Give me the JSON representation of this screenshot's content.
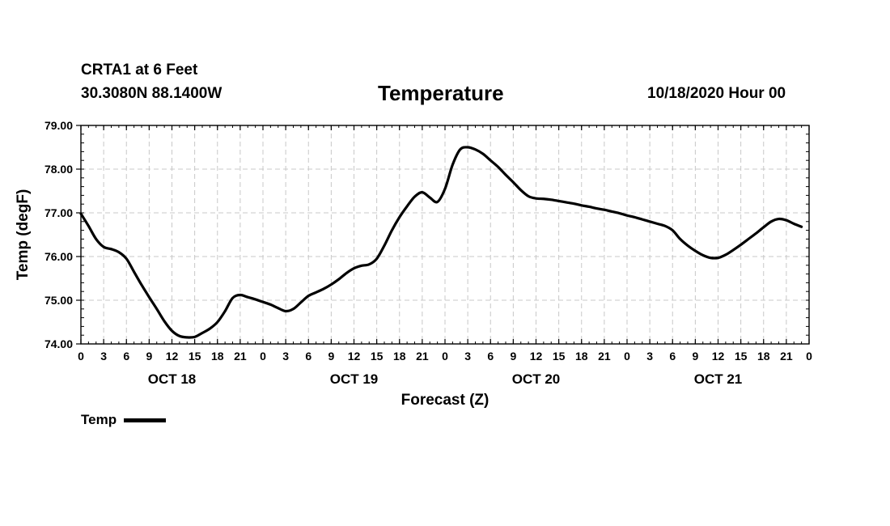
{
  "header": {
    "station": "CRTA1 at 6 Feet",
    "coords": "30.3080N 88.1400W",
    "title": "Temperature",
    "date": "10/18/2020 Hour 00"
  },
  "legend": {
    "label": "Temp"
  },
  "chart_data": {
    "type": "line",
    "title": "Temperature",
    "xlabel": "Forecast (Z)",
    "ylabel": "Temp (degF)",
    "xlim": [
      0,
      96
    ],
    "ylim": [
      74,
      79
    ],
    "yticks": [
      "74.00",
      "75.00",
      "76.00",
      "77.00",
      "78.00",
      "79.00"
    ],
    "xtick_hours": [
      0,
      3,
      6,
      9,
      12,
      15,
      18,
      21,
      24,
      27,
      30,
      33,
      36,
      39,
      42,
      45,
      48,
      51,
      54,
      57,
      60,
      63,
      66,
      69,
      72,
      75,
      78,
      81,
      84,
      87,
      90,
      93,
      96
    ],
    "xtick_labels": [
      "0",
      "3",
      "6",
      "9",
      "12",
      "15",
      "18",
      "21",
      "0",
      "3",
      "6",
      "9",
      "12",
      "15",
      "18",
      "21",
      "0",
      "3",
      "6",
      "9",
      "12",
      "15",
      "18",
      "21",
      "0",
      "3",
      "6",
      "9",
      "12",
      "15",
      "18",
      "21",
      "0"
    ],
    "date_labels": [
      {
        "hour": 12,
        "label": "OCT 18"
      },
      {
        "hour": 36,
        "label": "OCT 19"
      },
      {
        "hour": 60,
        "label": "OCT 20"
      },
      {
        "hour": 84,
        "label": "OCT 21"
      }
    ],
    "grid": true,
    "legend_position": "bottom-left",
    "series": [
      {
        "name": "Temp",
        "color": "#000000",
        "points": [
          [
            0,
            76.98
          ],
          [
            1,
            76.7
          ],
          [
            2,
            76.4
          ],
          [
            3,
            76.22
          ],
          [
            4,
            76.17
          ],
          [
            5,
            76.1
          ],
          [
            6,
            75.95
          ],
          [
            7,
            75.65
          ],
          [
            8,
            75.35
          ],
          [
            9,
            75.07
          ],
          [
            10,
            74.8
          ],
          [
            11,
            74.52
          ],
          [
            12,
            74.3
          ],
          [
            13,
            74.18
          ],
          [
            14,
            74.15
          ],
          [
            15,
            74.16
          ],
          [
            16,
            74.25
          ],
          [
            17,
            74.35
          ],
          [
            18,
            74.5
          ],
          [
            19,
            74.75
          ],
          [
            20,
            75.05
          ],
          [
            21,
            75.12
          ],
          [
            22,
            75.07
          ],
          [
            23,
            75.02
          ],
          [
            24,
            74.96
          ],
          [
            25,
            74.9
          ],
          [
            26,
            74.82
          ],
          [
            27,
            74.75
          ],
          [
            28,
            74.8
          ],
          [
            29,
            74.95
          ],
          [
            30,
            75.1
          ],
          [
            31,
            75.18
          ],
          [
            32,
            75.26
          ],
          [
            33,
            75.36
          ],
          [
            34,
            75.48
          ],
          [
            35,
            75.62
          ],
          [
            36,
            75.73
          ],
          [
            37,
            75.79
          ],
          [
            38,
            75.82
          ],
          [
            39,
            75.95
          ],
          [
            40,
            76.25
          ],
          [
            41,
            76.6
          ],
          [
            42,
            76.9
          ],
          [
            43,
            77.15
          ],
          [
            44,
            77.37
          ],
          [
            45,
            77.47
          ],
          [
            46,
            77.35
          ],
          [
            47,
            77.25
          ],
          [
            48,
            77.55
          ],
          [
            49,
            78.1
          ],
          [
            50,
            78.45
          ],
          [
            51,
            78.5
          ],
          [
            52,
            78.45
          ],
          [
            53,
            78.35
          ],
          [
            54,
            78.2
          ],
          [
            55,
            78.05
          ],
          [
            56,
            77.87
          ],
          [
            57,
            77.7
          ],
          [
            58,
            77.52
          ],
          [
            59,
            77.38
          ],
          [
            60,
            77.33
          ],
          [
            61,
            77.32
          ],
          [
            62,
            77.3
          ],
          [
            63,
            77.27
          ],
          [
            64,
            77.24
          ],
          [
            65,
            77.21
          ],
          [
            66,
            77.17
          ],
          [
            67,
            77.14
          ],
          [
            68,
            77.1
          ],
          [
            69,
            77.07
          ],
          [
            70,
            77.03
          ],
          [
            71,
            76.99
          ],
          [
            72,
            76.94
          ],
          [
            73,
            76.9
          ],
          [
            74,
            76.85
          ],
          [
            75,
            76.8
          ],
          [
            76,
            76.75
          ],
          [
            77,
            76.7
          ],
          [
            78,
            76.6
          ],
          [
            79,
            76.4
          ],
          [
            80,
            76.25
          ],
          [
            81,
            76.13
          ],
          [
            82,
            76.03
          ],
          [
            83,
            75.97
          ],
          [
            84,
            75.97
          ],
          [
            85,
            76.04
          ],
          [
            86,
            76.15
          ],
          [
            87,
            76.27
          ],
          [
            88,
            76.4
          ],
          [
            89,
            76.53
          ],
          [
            90,
            76.67
          ],
          [
            91,
            76.8
          ],
          [
            92,
            76.86
          ],
          [
            93,
            76.83
          ],
          [
            94,
            76.75
          ],
          [
            95,
            76.68
          ]
        ]
      }
    ]
  }
}
